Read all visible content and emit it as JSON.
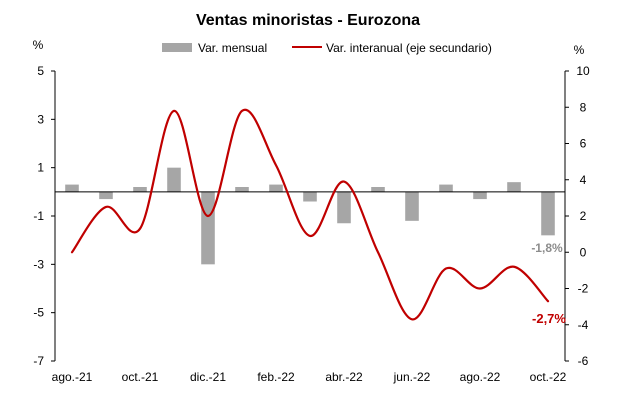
{
  "chart_data": {
    "type": "bar+line",
    "title": "Ventas minoristas - Eurozona",
    "left_axis": {
      "unit": "%",
      "ylim": [
        -7,
        5
      ],
      "ticks": [
        5,
        3,
        1,
        -1,
        -3,
        -5,
        -7
      ]
    },
    "right_axis": {
      "unit": "%",
      "ylim": [
        -6,
        10
      ],
      "ticks": [
        10,
        8,
        6,
        4,
        2,
        0,
        -2,
        -4,
        -6
      ]
    },
    "x_tick_labels": [
      "ago.-21",
      "oct.-21",
      "dic.-21",
      "feb.-22",
      "abr.-22",
      "jun.-22",
      "ago.-22",
      "oct.-22"
    ],
    "categories": [
      "ago.-21",
      "sep.-21",
      "oct.-21",
      "nov.-21",
      "dic.-21",
      "ene.-22",
      "feb.-22",
      "mar.-22",
      "abr.-22",
      "may.-22",
      "jun.-22",
      "jul.-22",
      "ago.-22",
      "sep.-22",
      "oct.-22"
    ],
    "series": [
      {
        "name": "Var. mensual",
        "type": "bar",
        "axis": "left",
        "color": "#a6a6a6",
        "values": [
          0.3,
          -0.3,
          0.2,
          1.0,
          -3.0,
          0.2,
          0.3,
          -0.4,
          -1.3,
          0.2,
          -1.2,
          0.3,
          -0.3,
          0.4,
          -1.8
        ]
      },
      {
        "name": "Var. interanual (eje secundario)",
        "type": "line",
        "axis": "right",
        "color": "#c00000",
        "values": [
          0.0,
          2.5,
          1.3,
          7.8,
          2.0,
          7.8,
          4.8,
          0.9,
          3.9,
          0.0,
          -3.7,
          -0.9,
          -2.0,
          -0.8,
          -2.7
        ]
      }
    ],
    "annotations": {
      "bar_last": "-1,8%",
      "line_last": "-2,7%"
    }
  }
}
